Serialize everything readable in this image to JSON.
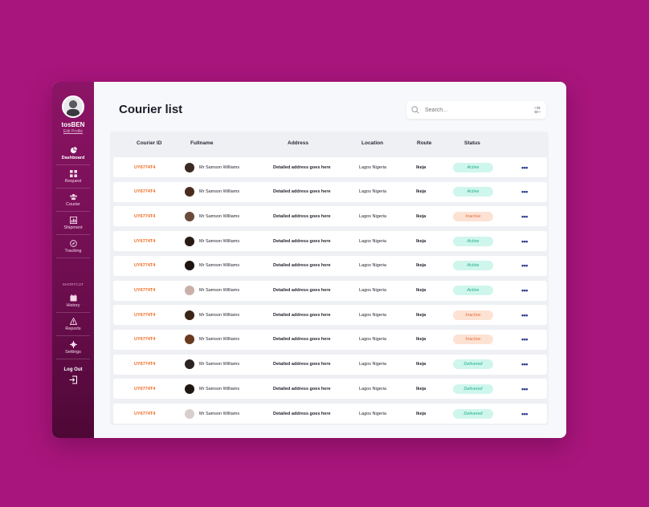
{
  "app": {
    "username": "tosBEN",
    "edit_profile": "Edit Profile",
    "page_title": "Courier list",
    "search_placeholder": "Search..."
  },
  "colors": {
    "background": "#a8157c",
    "sidebar": "#8d1466",
    "id_text": "#f06a1f"
  },
  "sidebar": {
    "nav": [
      {
        "label": "Dashboard",
        "icon": "pie-chart-icon",
        "active": true
      },
      {
        "label": "Request",
        "icon": "grid-icon",
        "active": false
      },
      {
        "label": "Courier",
        "icon": "people-icon",
        "active": false
      },
      {
        "label": "Shipment",
        "icon": "chart-icon",
        "active": false
      },
      {
        "label": "Tracking",
        "icon": "compass-icon",
        "active": false
      }
    ],
    "shortcut_title": "SHORTCUT",
    "shortcuts": [
      {
        "label": "History",
        "icon": "calendar-icon"
      },
      {
        "label": "Reports",
        "icon": "warning-icon"
      },
      {
        "label": "Settings",
        "icon": "gear-icon"
      }
    ],
    "logout": "Log Out"
  },
  "table": {
    "headers": [
      "Courier ID",
      "Fullname",
      "Address",
      "Location",
      "Route",
      "Status"
    ],
    "rows": [
      {
        "id": "UY6774T4",
        "name": "Mr Samson Williams",
        "address": "Detailed address goes here",
        "location": "Lagos Nigeria",
        "route": "Ikeja",
        "status": "Active"
      },
      {
        "id": "UY6774T4",
        "name": "Mr Samson Williams",
        "address": "Detailed address goes here",
        "location": "Lagos Nigeria",
        "route": "Ikeja",
        "status": "Active"
      },
      {
        "id": "UY6774T4",
        "name": "Mr Samson Williams",
        "address": "Detailed address goes here",
        "location": "Lagos Nigeria",
        "route": "Ikeja",
        "status": "Inactive"
      },
      {
        "id": "UY6774T4",
        "name": "Mr Samson Williams",
        "address": "Detailed address goes here",
        "location": "Lagos Nigeria",
        "route": "Ikeja",
        "status": "Active"
      },
      {
        "id": "UY6774T4",
        "name": "Mr Samson Williams",
        "address": "Detailed address goes here",
        "location": "Lagos Nigeria",
        "route": "Ikeja",
        "status": "Active"
      },
      {
        "id": "UY6774T4",
        "name": "Mr Samson Williams",
        "address": "Detailed address goes here",
        "location": "Lagos Nigeria",
        "route": "Ikeja",
        "status": "Active"
      },
      {
        "id": "UY6774T4",
        "name": "Mr Samson Williams",
        "address": "Detailed address goes here",
        "location": "Lagos Nigeria",
        "route": "Ikeja",
        "status": "Inactive"
      },
      {
        "id": "UY6774T4",
        "name": "Mr Samson Williams",
        "address": "Detailed address goes here",
        "location": "Lagos Nigeria",
        "route": "Ikeja",
        "status": "Inactive"
      },
      {
        "id": "UY6774T4",
        "name": "Mr Samson Williams",
        "address": "Detailed address goes here",
        "location": "Lagos Nigeria",
        "route": "Ikeja",
        "status": "Delivered"
      },
      {
        "id": "UY6774T4",
        "name": "Mr Samson Williams",
        "address": "Detailed address goes here",
        "location": "Lagos Nigeria",
        "route": "Ikeja",
        "status": "Delivered"
      },
      {
        "id": "UY6774T4",
        "name": "Mr Samson Williams",
        "address": "Detailed address goes here",
        "location": "Lagos Nigeria",
        "route": "Ikeja",
        "status": "Delivered"
      }
    ],
    "more_glyph": "•••"
  }
}
